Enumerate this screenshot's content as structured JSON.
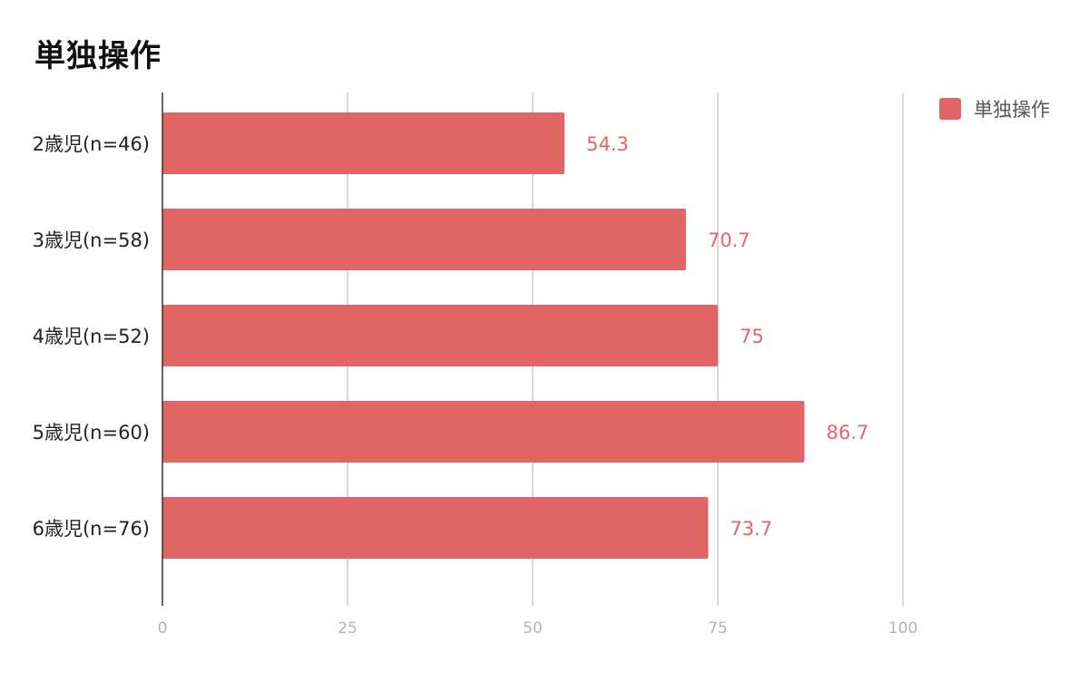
{
  "colors": {
    "bar": "#e06666",
    "grid": "#cccccc",
    "axis": "#333333"
  },
  "chart_data": {
    "type": "bar",
    "orientation": "horizontal",
    "title": "単独操作",
    "categories": [
      "2歳児(n=46)",
      "3歳児(n=58)",
      "4歳児(n=52)",
      "5歳児(n=60)",
      "6歳児(n=76)"
    ],
    "series": [
      {
        "name": "単独操作",
        "values": [
          54.3,
          70.7,
          75,
          86.7,
          73.7
        ]
      }
    ],
    "xlim": [
      0,
      100
    ],
    "xticks": [
      0,
      25,
      50,
      75,
      100
    ],
    "grid": true,
    "legend": "top-right"
  }
}
